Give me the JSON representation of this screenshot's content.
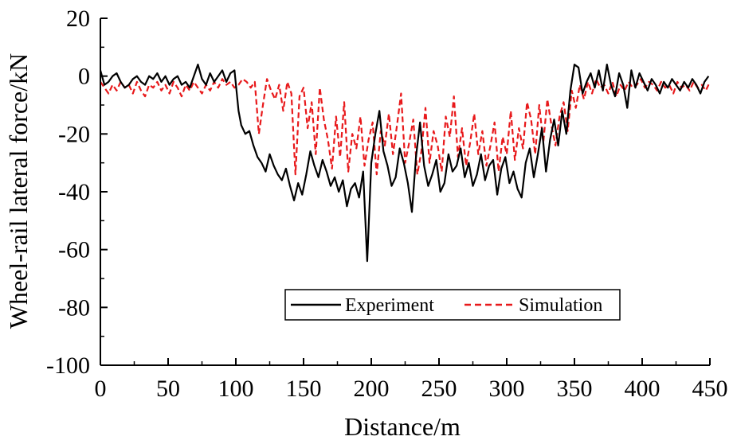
{
  "chart_data": {
    "type": "line",
    "xlabel": "Distance/m",
    "ylabel": "Wheel-rail lateral force/kN",
    "xlim": [
      0,
      450
    ],
    "ylim": [
      -100,
      20
    ],
    "xticks": [
      0,
      50,
      100,
      150,
      200,
      250,
      300,
      350,
      400,
      450
    ],
    "yticks": [
      20,
      0,
      -20,
      -40,
      -60,
      -80,
      -100
    ],
    "grid": false,
    "legend_position": "lower-center",
    "series": [
      {
        "name": "Experiment",
        "color": "#000000",
        "style": "solid",
        "x": [
          0,
          3,
          6,
          9,
          12,
          15,
          18,
          21,
          24,
          27,
          30,
          33,
          36,
          39,
          42,
          45,
          48,
          51,
          54,
          57,
          60,
          63,
          66,
          69,
          72,
          75,
          78,
          81,
          84,
          87,
          90,
          93,
          96,
          99,
          102,
          104,
          107,
          110,
          113,
          116,
          119,
          122,
          125,
          128,
          131,
          134,
          137,
          140,
          143,
          146,
          149,
          152,
          155,
          158,
          161,
          164,
          167,
          170,
          173,
          176,
          179,
          182,
          185,
          188,
          191,
          194,
          197,
          200,
          203,
          206,
          209,
          212,
          215,
          218,
          221,
          224,
          227,
          230,
          233,
          236,
          239,
          242,
          245,
          248,
          251,
          254,
          257,
          260,
          263,
          266,
          269,
          272,
          275,
          278,
          281,
          284,
          287,
          290,
          293,
          296,
          299,
          302,
          305,
          308,
          311,
          314,
          317,
          320,
          323,
          326,
          329,
          332,
          335,
          338,
          341,
          344,
          347,
          350,
          353,
          356,
          359,
          362,
          365,
          368,
          371,
          374,
          377,
          380,
          383,
          386,
          389,
          392,
          395,
          398,
          401,
          404,
          407,
          410,
          413,
          416,
          419,
          422,
          425,
          428,
          431,
          434,
          437,
          440,
          443,
          446,
          449
        ],
        "values": [
          2,
          -3,
          -2,
          0,
          1,
          -2,
          -4,
          -3,
          -1,
          0,
          -2,
          -3,
          0,
          -1,
          1,
          -2,
          0,
          -3,
          -1,
          0,
          -3,
          -2,
          -4,
          0,
          4,
          -1,
          -3,
          1,
          -2,
          0,
          2,
          -2,
          1,
          2,
          -12,
          -17,
          -20,
          -19,
          -24,
          -28,
          -30,
          -33,
          -27,
          -31,
          -34,
          -36,
          -32,
          -38,
          -43,
          -37,
          -41,
          -34,
          -26,
          -31,
          -35,
          -29,
          -33,
          -38,
          -35,
          -40,
          -36,
          -45,
          -39,
          -37,
          -42,
          -33,
          -64,
          -30,
          -20,
          -12,
          -26,
          -31,
          -38,
          -35,
          -25,
          -30,
          -37,
          -47,
          -28,
          -16,
          -31,
          -38,
          -34,
          -29,
          -40,
          -37,
          -27,
          -33,
          -31,
          -25,
          -35,
          -30,
          -38,
          -34,
          -27,
          -36,
          -31,
          -29,
          -41,
          -32,
          -28,
          -37,
          -33,
          -39,
          -42,
          -30,
          -25,
          -35,
          -27,
          -18,
          -33,
          -22,
          -15,
          -24,
          -12,
          -20,
          -5,
          4,
          3,
          -6,
          -2,
          1,
          -4,
          2,
          -5,
          4,
          -3,
          -7,
          1,
          -3,
          -11,
          2,
          -4,
          1,
          -2,
          -5,
          -1,
          -3,
          -6,
          -2,
          -4,
          -1,
          -3,
          -5,
          -2,
          -4,
          -1,
          -3,
          -6,
          -2,
          0
        ]
      },
      {
        "name": "Simulation",
        "color": "#e8191b",
        "style": "dashed",
        "x": [
          0,
          3,
          6,
          9,
          12,
          15,
          18,
          21,
          24,
          27,
          30,
          33,
          36,
          39,
          42,
          45,
          48,
          51,
          54,
          57,
          60,
          63,
          66,
          69,
          72,
          75,
          78,
          81,
          84,
          87,
          90,
          93,
          96,
          99,
          102,
          105,
          108,
          111,
          114,
          117,
          120,
          123,
          126,
          129,
          132,
          135,
          138,
          141,
          144,
          147,
          150,
          153,
          156,
          159,
          162,
          165,
          168,
          171,
          174,
          177,
          180,
          183,
          186,
          189,
          192,
          195,
          198,
          201,
          204,
          207,
          210,
          213,
          216,
          219,
          222,
          225,
          228,
          231,
          234,
          237,
          240,
          243,
          246,
          249,
          252,
          255,
          258,
          261,
          264,
          267,
          270,
          273,
          276,
          279,
          282,
          285,
          288,
          291,
          294,
          297,
          300,
          303,
          306,
          309,
          312,
          315,
          318,
          321,
          324,
          327,
          330,
          333,
          336,
          339,
          342,
          345,
          348,
          351,
          354,
          357,
          360,
          363,
          366,
          369,
          372,
          375,
          378,
          381,
          384,
          387,
          390,
          393,
          396,
          399,
          402,
          405,
          408,
          411,
          414,
          417,
          420,
          423,
          426,
          429,
          432,
          435,
          438,
          441,
          444,
          447,
          450
        ],
        "values": [
          -2,
          -4,
          -6,
          -3,
          -5,
          -2,
          -4,
          -3,
          -6,
          -2,
          -5,
          -7,
          -3,
          -4,
          -2,
          -5,
          -3,
          -6,
          -2,
          -4,
          -7,
          -3,
          -5,
          -2,
          -4,
          -6,
          -3,
          -5,
          -2,
          -4,
          -1,
          -3,
          -2,
          -4,
          -3,
          -1,
          -2,
          -4,
          -2,
          -20,
          -10,
          -1,
          -5,
          -8,
          -3,
          -12,
          -2,
          -6,
          -34,
          -7,
          -4,
          -18,
          -9,
          -27,
          -4,
          -15,
          -22,
          -32,
          -14,
          -28,
          -9,
          -33,
          -20,
          -25,
          -14,
          -31,
          -22,
          -16,
          -34,
          -19,
          -24,
          -13,
          -27,
          -17,
          -6,
          -30,
          -23,
          -15,
          -34,
          -26,
          -11,
          -30,
          -19,
          -24,
          -33,
          -14,
          -21,
          -7,
          -28,
          -18,
          -31,
          -23,
          -13,
          -27,
          -19,
          -31,
          -24,
          -16,
          -33,
          -21,
          -27,
          -12,
          -29,
          -18,
          -25,
          -9,
          -15,
          -27,
          -10,
          -23,
          -8,
          -17,
          -24,
          -14,
          -9,
          -19,
          -5,
          -11,
          -3,
          -8,
          -2,
          -6,
          -1,
          -4,
          -3,
          -6,
          -2,
          -7,
          -3,
          -5,
          -2,
          -4,
          -3,
          -1,
          -4,
          -2,
          -3,
          -5,
          -2,
          -4,
          -3,
          -6,
          -2,
          -4,
          -3,
          -5,
          -2,
          -4,
          -3,
          -5,
          -2
        ]
      }
    ]
  }
}
